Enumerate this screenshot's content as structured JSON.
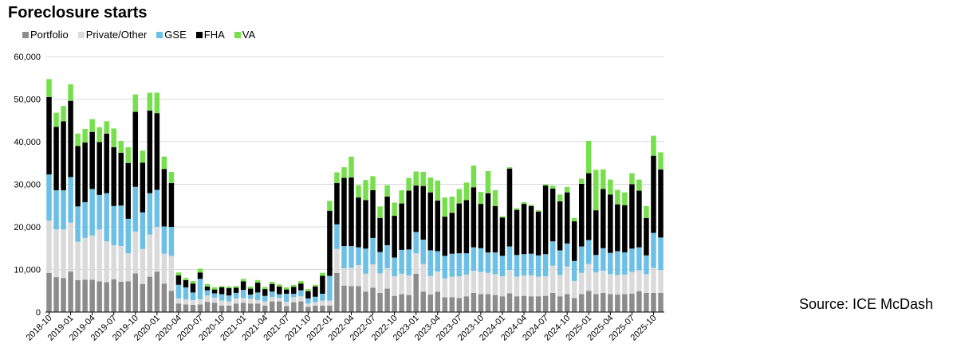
{
  "chart_data": {
    "type": "bar",
    "stacked": true,
    "title": "Foreclosure starts",
    "source": "Source: ICE McDash",
    "legend_position": "top-left",
    "ylim": [
      0,
      60000
    ],
    "yticks": [
      "0",
      "10,000",
      "20,000",
      "30,000",
      "40,000",
      "50,000",
      "60,000"
    ],
    "xtick_labels": [
      "2018-10",
      "2019-01",
      "2019-04",
      "2019-07",
      "2019-10",
      "2020-01",
      "2020-04",
      "2020-07",
      "2020-10",
      "2021-01",
      "2021-04",
      "2021-07",
      "2021-10",
      "2022-01",
      "2022-04",
      "2022-07",
      "2022-10",
      "2023-01",
      "2023-04",
      "2023-07",
      "2023-10",
      "2024-01",
      "2024-04",
      "2024-07",
      "2024-10",
      "2025-01",
      "2025-04",
      "2025-07",
      "2025-10"
    ],
    "categories": [
      "2018-10",
      "2018-11",
      "2018-12",
      "2019-01",
      "2019-02",
      "2019-03",
      "2019-04",
      "2019-05",
      "2019-06",
      "2019-07",
      "2019-08",
      "2019-09",
      "2019-10",
      "2019-11",
      "2019-12",
      "2020-01",
      "2020-02",
      "2020-03",
      "2020-04",
      "2020-05",
      "2020-06",
      "2020-07",
      "2020-08",
      "2020-09",
      "2020-10",
      "2020-11",
      "2020-12",
      "2021-01",
      "2021-02",
      "2021-03",
      "2021-04",
      "2021-05",
      "2021-06",
      "2021-07",
      "2021-08",
      "2021-09",
      "2021-10",
      "2021-11",
      "2021-12",
      "2022-01",
      "2022-02",
      "2022-03",
      "2022-04",
      "2022-05",
      "2022-06",
      "2022-07",
      "2022-08",
      "2022-09",
      "2022-10",
      "2022-11",
      "2022-12",
      "2023-01",
      "2023-02",
      "2023-03",
      "2023-04",
      "2023-05",
      "2023-06",
      "2023-07",
      "2023-08",
      "2023-09",
      "2023-10",
      "2023-11",
      "2023-12",
      "2024-01",
      "2024-02",
      "2024-03",
      "2024-04",
      "2024-05",
      "2024-06",
      "2024-07",
      "2024-08",
      "2024-09",
      "2024-10",
      "2024-11",
      "2024-12",
      "2025-01",
      "2025-02",
      "2025-03",
      "2025-04",
      "2025-05",
      "2025-06",
      "2025-07",
      "2025-08",
      "2025-09",
      "2025-10",
      "2025-11"
    ],
    "series": [
      {
        "name": "Portfolio",
        "color": "#8c8c8c",
        "values": [
          9200,
          8200,
          8000,
          9500,
          7500,
          7600,
          7600,
          7200,
          7000,
          7700,
          7100,
          7200,
          9100,
          6600,
          8300,
          9500,
          6700,
          5000,
          2000,
          1800,
          1700,
          1800,
          2400,
          2200,
          1500,
          1500,
          2000,
          2200,
          2000,
          2000,
          1500,
          2500,
          2500,
          1400,
          2300,
          2500,
          1200,
          1500,
          1500,
          1500,
          9200,
          6200,
          6100,
          6100,
          4800,
          5700,
          4500,
          5500,
          3800,
          4200,
          4000,
          9000,
          4800,
          4100,
          4800,
          3500,
          3500,
          3300,
          3700,
          4500,
          4200,
          4200,
          4000,
          3700,
          4400,
          3700,
          3800,
          3700,
          3700,
          3800,
          4500,
          3700,
          4200,
          3300,
          4200,
          5000,
          4200,
          4500,
          4200,
          4100,
          4200,
          4300,
          4900,
          4500,
          4500,
          4500
        ]
      },
      {
        "name": "Private/Other",
        "color": "#dadada",
        "values": [
          12300,
          11200,
          11400,
          11500,
          9000,
          9800,
          10400,
          12200,
          9600,
          8000,
          8400,
          6600,
          9800,
          8200,
          9900,
          10500,
          7000,
          8200,
          1200,
          1200,
          1100,
          1200,
          1500,
          1200,
          1200,
          1000,
          1200,
          1100,
          1100,
          800,
          1000,
          1000,
          800,
          1000,
          1200,
          1200,
          800,
          800,
          1200,
          1200,
          5600,
          4100,
          4300,
          4900,
          4200,
          5500,
          4600,
          4800,
          4600,
          4800,
          4600,
          4800,
          6500,
          4400,
          4700,
          4400,
          4800,
          5100,
          5100,
          5200,
          5200,
          5000,
          4900,
          4700,
          5500,
          4600,
          4800,
          4900,
          4600,
          4600,
          6400,
          5000,
          6500,
          4000,
          5000,
          6300,
          5100,
          5200,
          4700,
          4600,
          4600,
          5100,
          4900,
          4400,
          5900,
          5400
        ]
      },
      {
        "name": "GSE",
        "color": "#6cc0e6",
        "values": [
          10800,
          9200,
          9200,
          10700,
          8300,
          8400,
          10900,
          8100,
          11300,
          9200,
          9500,
          8100,
          10500,
          8600,
          9700,
          8700,
          6400,
          6800,
          3200,
          2800,
          1800,
          4800,
          1200,
          1000,
          1500,
          1400,
          1300,
          1900,
          1000,
          1800,
          1300,
          1300,
          900,
          1900,
          800,
          1400,
          1200,
          1300,
          1600,
          5800,
          5800,
          5200,
          5100,
          4200,
          5900,
          6200,
          5000,
          5400,
          4400,
          5600,
          6100,
          5000,
          5700,
          6000,
          4800,
          5300,
          5400,
          5400,
          5000,
          5500,
          5600,
          4800,
          5100,
          4800,
          5500,
          5100,
          5000,
          5100,
          5000,
          5200,
          5700,
          5800,
          5400,
          4700,
          6200,
          5600,
          4100,
          5300,
          5000,
          5600,
          5200,
          5500,
          5400,
          4400,
          8200,
          7600
        ]
      },
      {
        "name": "FHA",
        "color": "#000000",
        "values": [
          18200,
          14900,
          16200,
          17900,
          14200,
          14000,
          13400,
          12400,
          14000,
          13800,
          12400,
          13100,
          17600,
          11700,
          19400,
          18000,
          13500,
          10300,
          2200,
          1700,
          2100,
          1500,
          900,
          900,
          1600,
          1700,
          1200,
          2000,
          1400,
          2300,
          1600,
          1800,
          1800,
          1000,
          1600,
          1600,
          1700,
          2400,
          4200,
          15300,
          9700,
          16000,
          16100,
          11700,
          11400,
          11200,
          8000,
          11400,
          9800,
          10900,
          13800,
          10900,
          12600,
          13600,
          11900,
          9200,
          9600,
          11700,
          12500,
          14100,
          10400,
          13900,
          10900,
          9000,
          18300,
          10600,
          11800,
          11200,
          10300,
          16100,
          12400,
          11500,
          12000,
          9300,
          14700,
          15700,
          10500,
          13900,
          13700,
          11000,
          11100,
          15100,
          13300,
          8800,
          18100,
          16000
        ]
      },
      {
        "name": "VA",
        "color": "#76e04c",
        "values": [
          4200,
          3300,
          3600,
          3900,
          2900,
          3200,
          3000,
          3500,
          2900,
          4400,
          2800,
          3700,
          4100,
          2800,
          4200,
          4800,
          2900,
          2600,
          700,
          500,
          600,
          900,
          600,
          500,
          300,
          400,
          400,
          600,
          500,
          600,
          500,
          500,
          500,
          500,
          500,
          600,
          500,
          400,
          700,
          2300,
          2500,
          2500,
          4900,
          2900,
          4700,
          3300,
          2700,
          2700,
          3100,
          3100,
          3000,
          3300,
          3300,
          3500,
          4700,
          4500,
          3800,
          3400,
          4100,
          5100,
          2800,
          5200,
          3700,
          300,
          300,
          400,
          400,
          300,
          300,
          300,
          700,
          1600,
          1300,
          800,
          1200,
          7600,
          9500,
          4600,
          3500,
          3400,
          3000,
          2600,
          2600,
          2800,
          4700,
          4000
        ]
      }
    ]
  }
}
